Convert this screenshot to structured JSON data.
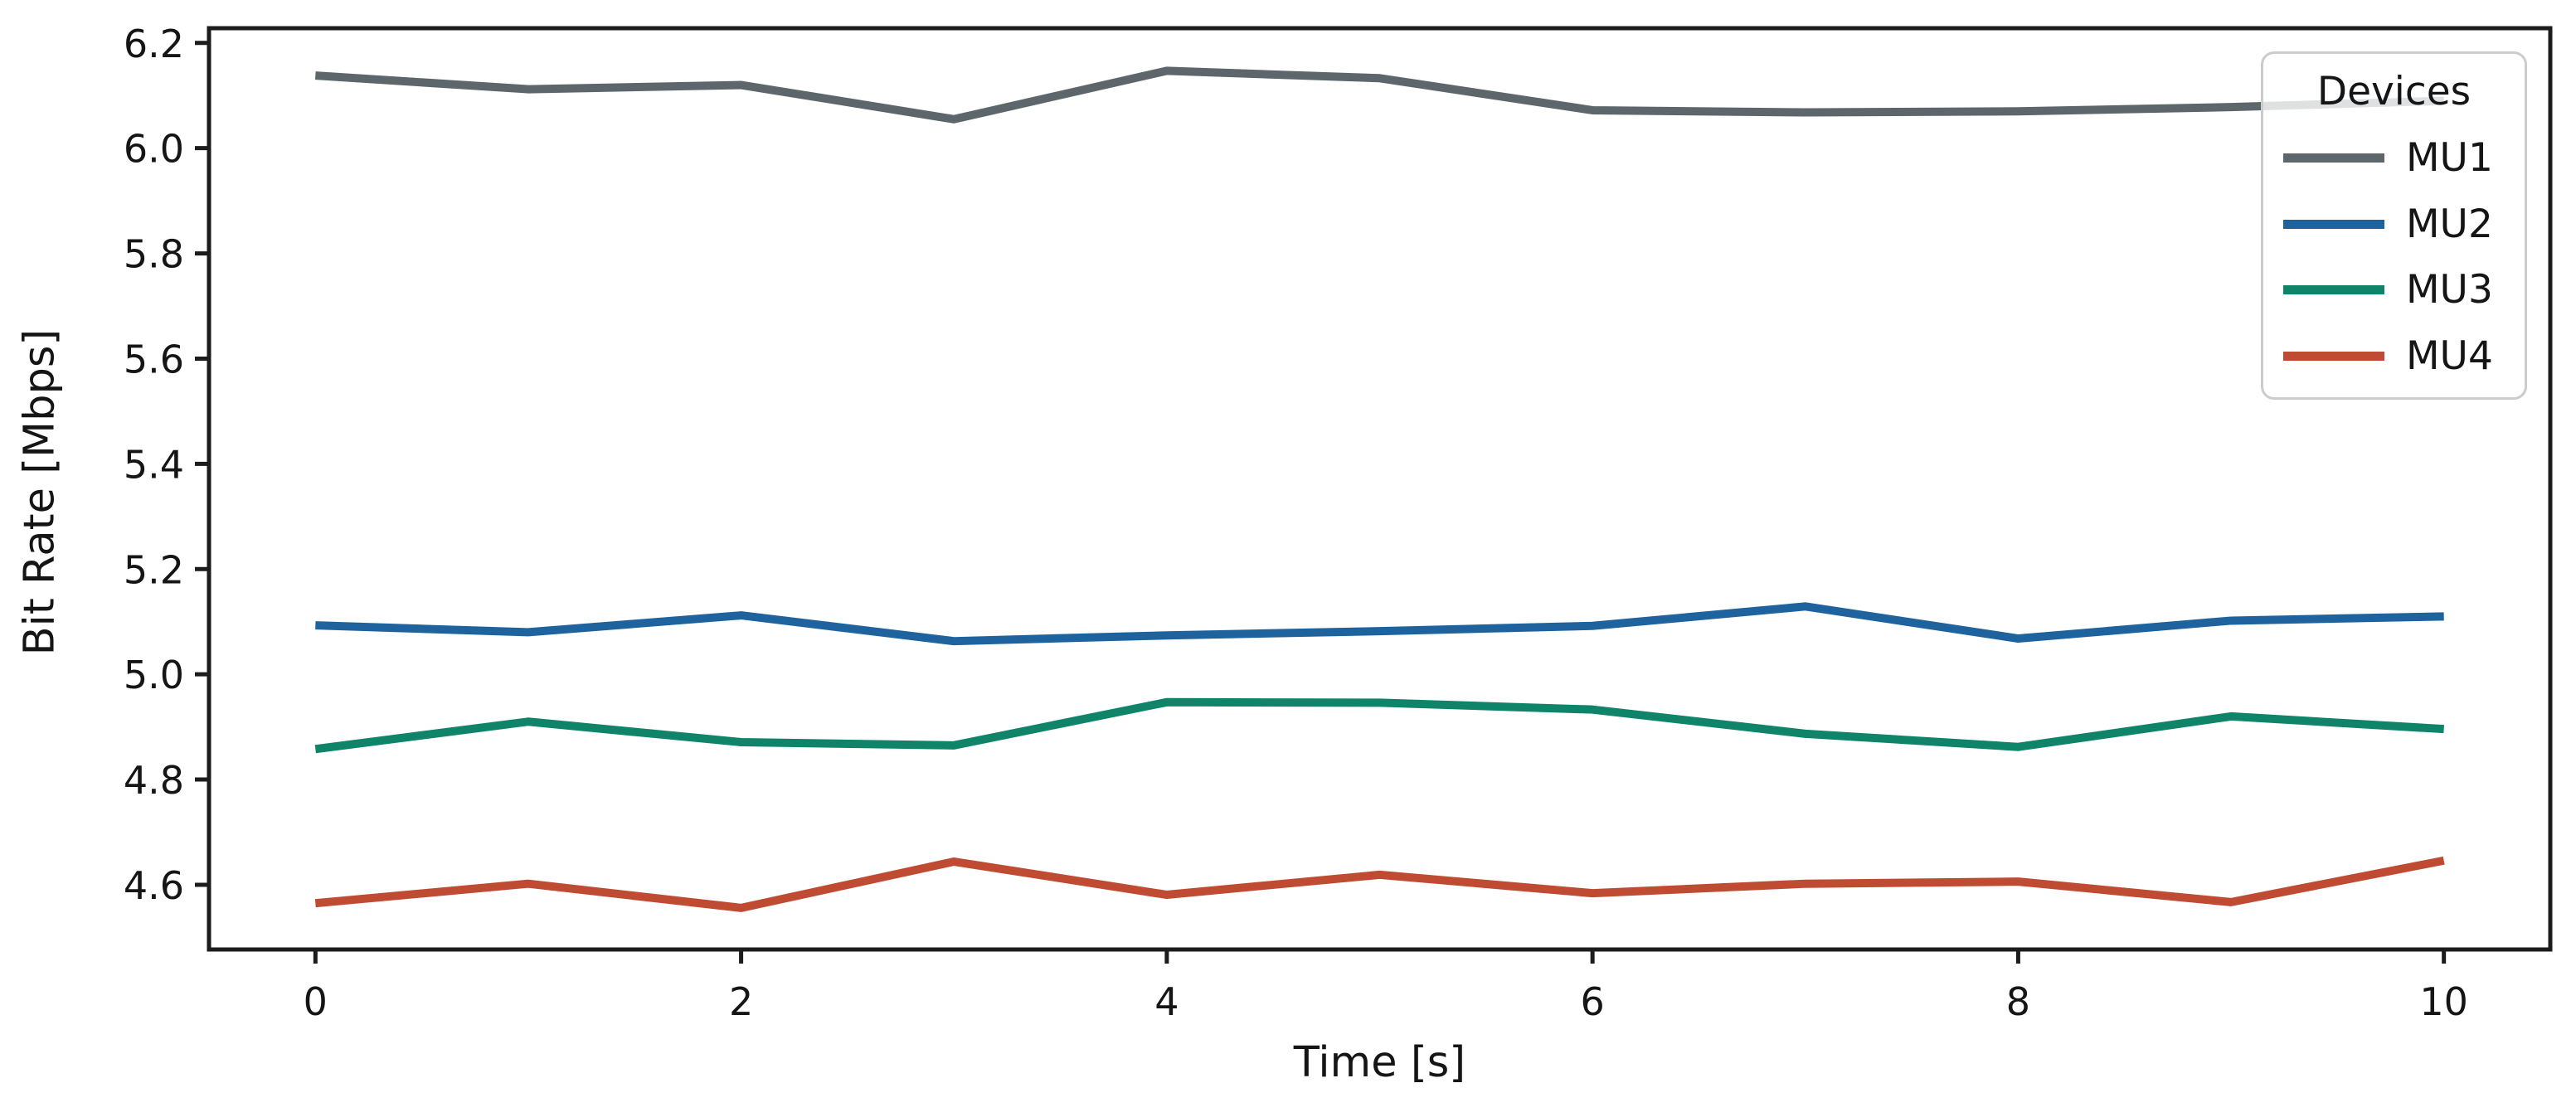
{
  "figure": {
    "xlabel": "Time [s]",
    "ylabel": "Bit Rate [Mbps]",
    "background_color": "#ffffff",
    "axis_color": "#1c1c1c"
  },
  "legend": {
    "title": "Devices",
    "position": "upper right",
    "border_color": "#cccccc"
  },
  "chart_data": {
    "type": "line",
    "title": "",
    "xlabel": "Time [s]",
    "ylabel": "Bit Rate [Mbps]",
    "grid": false,
    "legend_position": "upper right",
    "legend_title": "Devices",
    "x": [
      0,
      1,
      2,
      3,
      4,
      5,
      6,
      7,
      8,
      9,
      10
    ],
    "series": [
      {
        "name": "MU1",
        "color": "#5d676b",
        "values": [
          6.138,
          6.112,
          6.12,
          6.055,
          6.147,
          6.133,
          6.072,
          6.068,
          6.07,
          6.078,
          6.09
        ]
      },
      {
        "name": "MU2",
        "color": "#1f639e",
        "values": [
          5.093,
          5.08,
          5.112,
          5.063,
          5.074,
          5.082,
          5.092,
          5.129,
          5.068,
          5.102,
          5.11
        ]
      },
      {
        "name": "MU3",
        "color": "#0f8468",
        "values": [
          4.858,
          4.91,
          4.871,
          4.865,
          4.947,
          4.946,
          4.933,
          4.887,
          4.862,
          4.92,
          4.896
        ]
      },
      {
        "name": "MU4",
        "color": "#c04b33",
        "values": [
          4.565,
          4.602,
          4.556,
          4.644,
          4.581,
          4.619,
          4.584,
          4.602,
          4.606,
          4.567,
          4.646
        ]
      }
    ],
    "xticks": [
      0,
      2,
      4,
      6,
      8,
      10
    ],
    "yticks": [
      4.6,
      4.8,
      5.0,
      5.2,
      5.4,
      5.6,
      5.8,
      6.0,
      6.2
    ],
    "xlim": [
      -0.5,
      10.5
    ],
    "ylim": [
      4.477,
      6.228
    ]
  }
}
